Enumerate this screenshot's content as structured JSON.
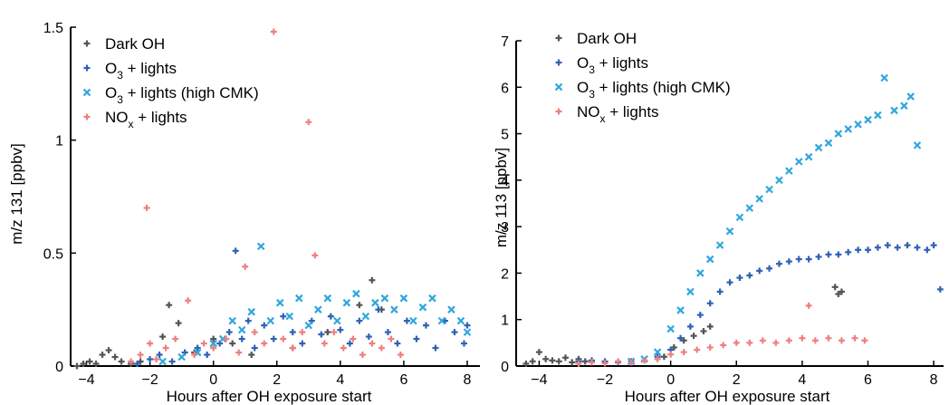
{
  "chart_data": [
    {
      "type": "scatter",
      "xlabel": "Hours after OH exposure start",
      "ylabel": "m/z 131 [ppbv]",
      "xlim": [
        -4.5,
        8.4
      ],
      "ylim": [
        0,
        1.5
      ],
      "xticks": [
        -4,
        -2,
        0,
        2,
        4,
        6,
        8
      ],
      "yticks": [
        0,
        0.5,
        1,
        1.5
      ],
      "ytick_labels": [
        "0",
        "0.5",
        "1",
        "1.5"
      ],
      "grid": false,
      "legend_position": "top-left",
      "series": [
        {
          "name": "Dark OH",
          "name_parts": [
            "Dark OH",
            "",
            ""
          ],
          "color": "#555555",
          "marker": "plus",
          "points": [
            [
              -4.3,
              0.0
            ],
            [
              -4.1,
              0.01
            ],
            [
              -3.9,
              0.02
            ],
            [
              -3.7,
              0.01
            ],
            [
              -3.5,
              0.05
            ],
            [
              -3.3,
              0.07
            ],
            [
              -3.1,
              0.04
            ],
            [
              -2.9,
              0.02
            ],
            [
              -2.6,
              0.01
            ],
            [
              -2.3,
              0.02
            ],
            [
              -1.6,
              0.13
            ],
            [
              -1.4,
              0.27
            ],
            [
              -1.1,
              0.19
            ],
            [
              -0.6,
              0.06
            ],
            [
              0.0,
              0.12
            ],
            [
              0.6,
              0.1
            ],
            [
              1.2,
              0.05
            ],
            [
              2.5,
              0.08
            ],
            [
              3.6,
              0.15
            ],
            [
              4.6,
              0.27
            ],
            [
              5.0,
              0.38
            ],
            [
              5.3,
              0.25
            ]
          ]
        },
        {
          "name": "O3 + lights",
          "name_parts": [
            "O",
            "3",
            " + lights"
          ],
          "color": "#2f62b5",
          "marker": "plus",
          "points": [
            [
              -2.4,
              0.01
            ],
            [
              -2.0,
              0.03
            ],
            [
              -1.7,
              0.05
            ],
            [
              -1.3,
              0.02
            ],
            [
              -0.9,
              0.06
            ],
            [
              -0.5,
              0.08
            ],
            [
              -0.2,
              0.05
            ],
            [
              0.2,
              0.1
            ],
            [
              0.5,
              0.15
            ],
            [
              0.7,
              0.51
            ],
            [
              0.9,
              0.12
            ],
            [
              1.1,
              0.2
            ],
            [
              1.3,
              0.08
            ],
            [
              1.6,
              0.18
            ],
            [
              1.9,
              0.12
            ],
            [
              2.2,
              0.22
            ],
            [
              2.5,
              0.15
            ],
            [
              2.8,
              0.1
            ],
            [
              3.1,
              0.2
            ],
            [
              3.4,
              0.14
            ],
            [
              3.7,
              0.22
            ],
            [
              4.0,
              0.16
            ],
            [
              4.3,
              0.1
            ],
            [
              4.6,
              0.2
            ],
            [
              4.9,
              0.13
            ],
            [
              5.2,
              0.25
            ],
            [
              5.5,
              0.15
            ],
            [
              5.8,
              0.1
            ],
            [
              6.1,
              0.2
            ],
            [
              6.4,
              0.12
            ],
            [
              6.7,
              0.18
            ],
            [
              7.0,
              0.08
            ],
            [
              7.3,
              0.2
            ],
            [
              7.6,
              0.15
            ],
            [
              7.9,
              0.1
            ],
            [
              8.0,
              0.18
            ]
          ]
        },
        {
          "name": "O3 + lights (high CMK)",
          "name_parts": [
            "O",
            "3",
            " + lights (high CMK)"
          ],
          "color": "#2fa6df",
          "marker": "x",
          "points": [
            [
              -1.6,
              0.02
            ],
            [
              -1.0,
              0.04
            ],
            [
              -0.5,
              0.06
            ],
            [
              0.0,
              0.1
            ],
            [
              0.3,
              0.12
            ],
            [
              0.6,
              0.2
            ],
            [
              0.9,
              0.16
            ],
            [
              1.2,
              0.24
            ],
            [
              1.5,
              0.53
            ],
            [
              1.8,
              0.2
            ],
            [
              2.1,
              0.28
            ],
            [
              2.4,
              0.22
            ],
            [
              2.7,
              0.3
            ],
            [
              3.0,
              0.18
            ],
            [
              3.3,
              0.25
            ],
            [
              3.6,
              0.3
            ],
            [
              3.9,
              0.2
            ],
            [
              4.2,
              0.28
            ],
            [
              4.5,
              0.32
            ],
            [
              4.8,
              0.22
            ],
            [
              5.1,
              0.28
            ],
            [
              5.4,
              0.3
            ],
            [
              5.7,
              0.25
            ],
            [
              6.0,
              0.3
            ],
            [
              6.3,
              0.2
            ],
            [
              6.6,
              0.26
            ],
            [
              6.9,
              0.3
            ],
            [
              7.2,
              0.2
            ],
            [
              7.5,
              0.25
            ],
            [
              7.8,
              0.2
            ],
            [
              8.0,
              0.15
            ]
          ]
        },
        {
          "name": "NOx + lights",
          "name_parts": [
            "NO",
            "x",
            " + lights"
          ],
          "color": "#f07f7f",
          "marker": "plus",
          "points": [
            [
              -2.6,
              0.02
            ],
            [
              -2.3,
              0.05
            ],
            [
              -2.1,
              0.7
            ],
            [
              -2.0,
              0.1
            ],
            [
              -1.8,
              0.03
            ],
            [
              -1.5,
              0.08
            ],
            [
              -1.2,
              0.12
            ],
            [
              -0.8,
              0.29
            ],
            [
              -0.6,
              0.05
            ],
            [
              -0.3,
              0.1
            ],
            [
              0.0,
              0.08
            ],
            [
              0.4,
              0.12
            ],
            [
              0.8,
              0.06
            ],
            [
              1.0,
              0.44
            ],
            [
              1.3,
              0.15
            ],
            [
              1.6,
              0.1
            ],
            [
              1.9,
              1.48
            ],
            [
              2.2,
              0.12
            ],
            [
              2.5,
              0.08
            ],
            [
              2.8,
              0.15
            ],
            [
              3.0,
              1.08
            ],
            [
              3.2,
              0.49
            ],
            [
              3.5,
              0.1
            ],
            [
              3.8,
              0.15
            ],
            [
              4.1,
              0.08
            ],
            [
              4.4,
              0.12
            ],
            [
              4.7,
              0.05
            ],
            [
              5.0,
              0.1
            ],
            [
              5.3,
              0.08
            ],
            [
              5.6,
              0.12
            ],
            [
              5.9,
              0.05
            ]
          ]
        }
      ]
    },
    {
      "type": "scatter",
      "xlabel": "Hours after OH exposure start",
      "ylabel": "m/z 113 [ppbv]",
      "xlim": [
        -4.7,
        8.3
      ],
      "ylim": [
        0,
        7
      ],
      "xticks": [
        -4,
        -2,
        0,
        2,
        4,
        6,
        8
      ],
      "yticks": [
        0,
        1,
        2,
        3,
        4,
        5,
        6,
        7
      ],
      "ytick_labels": [
        "0",
        "1",
        "2",
        "3",
        "4",
        "5",
        "6",
        "7"
      ],
      "grid": false,
      "legend_position": "top-left",
      "series": [
        {
          "name": "Dark OH",
          "name_parts": [
            "Dark OH",
            "",
            ""
          ],
          "color": "#555555",
          "marker": "plus",
          "points": [
            [
              -4.4,
              0.05
            ],
            [
              -4.2,
              0.1
            ],
            [
              -4.0,
              0.3
            ],
            [
              -3.8,
              0.15
            ],
            [
              -3.6,
              0.12
            ],
            [
              -3.4,
              0.1
            ],
            [
              -3.2,
              0.18
            ],
            [
              -3.0,
              0.08
            ],
            [
              -2.8,
              0.15
            ],
            [
              -2.6,
              0.1
            ],
            [
              -0.2,
              0.2
            ],
            [
              0.1,
              0.4
            ],
            [
              0.4,
              0.55
            ],
            [
              0.7,
              0.65
            ],
            [
              1.0,
              0.75
            ],
            [
              1.2,
              0.85
            ],
            [
              5.0,
              1.7
            ],
            [
              5.1,
              1.55
            ],
            [
              5.2,
              1.6
            ]
          ]
        },
        {
          "name": "O3 + lights",
          "name_parts": [
            "O",
            "3",
            " + lights"
          ],
          "color": "#2f62b5",
          "marker": "plus",
          "points": [
            [
              -2.8,
              0.1
            ],
            [
              -2.4,
              0.12
            ],
            [
              -2.0,
              0.1
            ],
            [
              -1.6,
              0.08
            ],
            [
              -1.2,
              0.1
            ],
            [
              -0.8,
              0.12
            ],
            [
              -0.4,
              0.2
            ],
            [
              0.0,
              0.35
            ],
            [
              0.3,
              0.6
            ],
            [
              0.6,
              0.85
            ],
            [
              0.9,
              1.1
            ],
            [
              1.2,
              1.35
            ],
            [
              1.5,
              1.6
            ],
            [
              1.8,
              1.8
            ],
            [
              2.1,
              1.9
            ],
            [
              2.4,
              1.95
            ],
            [
              2.7,
              2.05
            ],
            [
              3.0,
              2.1
            ],
            [
              3.3,
              2.2
            ],
            [
              3.6,
              2.25
            ],
            [
              3.9,
              2.3
            ],
            [
              4.2,
              2.3
            ],
            [
              4.5,
              2.35
            ],
            [
              4.8,
              2.4
            ],
            [
              5.1,
              2.4
            ],
            [
              5.4,
              2.45
            ],
            [
              5.7,
              2.5
            ],
            [
              6.0,
              2.5
            ],
            [
              6.3,
              2.55
            ],
            [
              6.6,
              2.6
            ],
            [
              6.9,
              2.55
            ],
            [
              7.2,
              2.6
            ],
            [
              7.5,
              2.55
            ],
            [
              7.8,
              2.5
            ],
            [
              8.0,
              2.6
            ],
            [
              8.2,
              1.65
            ]
          ]
        },
        {
          "name": "O3 + lights (high CMK)",
          "name_parts": [
            "O",
            "3",
            " + lights (high CMK)"
          ],
          "color": "#2fa6df",
          "marker": "x",
          "points": [
            [
              -1.2,
              0.1
            ],
            [
              -0.8,
              0.15
            ],
            [
              -0.4,
              0.3
            ],
            [
              0.0,
              0.8
            ],
            [
              0.3,
              1.2
            ],
            [
              0.6,
              1.6
            ],
            [
              0.9,
              2.0
            ],
            [
              1.2,
              2.3
            ],
            [
              1.5,
              2.6
            ],
            [
              1.8,
              2.9
            ],
            [
              2.1,
              3.2
            ],
            [
              2.4,
              3.4
            ],
            [
              2.7,
              3.6
            ],
            [
              3.0,
              3.8
            ],
            [
              3.3,
              4.0
            ],
            [
              3.6,
              4.2
            ],
            [
              3.9,
              4.4
            ],
            [
              4.2,
              4.5
            ],
            [
              4.5,
              4.7
            ],
            [
              4.8,
              4.8
            ],
            [
              5.1,
              5.0
            ],
            [
              5.4,
              5.1
            ],
            [
              5.7,
              5.2
            ],
            [
              6.0,
              5.3
            ],
            [
              6.3,
              5.4
            ],
            [
              6.5,
              6.2
            ],
            [
              6.8,
              5.5
            ],
            [
              7.1,
              5.6
            ],
            [
              7.3,
              5.8
            ],
            [
              7.5,
              4.75
            ]
          ]
        },
        {
          "name": "NOx + lights",
          "name_parts": [
            "NO",
            "x",
            " + lights"
          ],
          "color": "#f07f7f",
          "marker": "plus",
          "points": [
            [
              -2.8,
              0.05
            ],
            [
              -2.4,
              0.08
            ],
            [
              -2.0,
              0.06
            ],
            [
              -1.6,
              0.1
            ],
            [
              -1.2,
              0.08
            ],
            [
              -0.8,
              0.12
            ],
            [
              -0.4,
              0.15
            ],
            [
              0.0,
              0.25
            ],
            [
              0.4,
              0.3
            ],
            [
              0.8,
              0.35
            ],
            [
              1.2,
              0.4
            ],
            [
              1.6,
              0.45
            ],
            [
              2.0,
              0.5
            ],
            [
              2.4,
              0.5
            ],
            [
              2.8,
              0.55
            ],
            [
              3.2,
              0.5
            ],
            [
              3.6,
              0.55
            ],
            [
              4.0,
              0.6
            ],
            [
              4.2,
              1.3
            ],
            [
              4.4,
              0.55
            ],
            [
              4.8,
              0.6
            ],
            [
              5.2,
              0.55
            ],
            [
              5.6,
              0.6
            ],
            [
              5.9,
              0.55
            ]
          ]
        }
      ]
    }
  ]
}
